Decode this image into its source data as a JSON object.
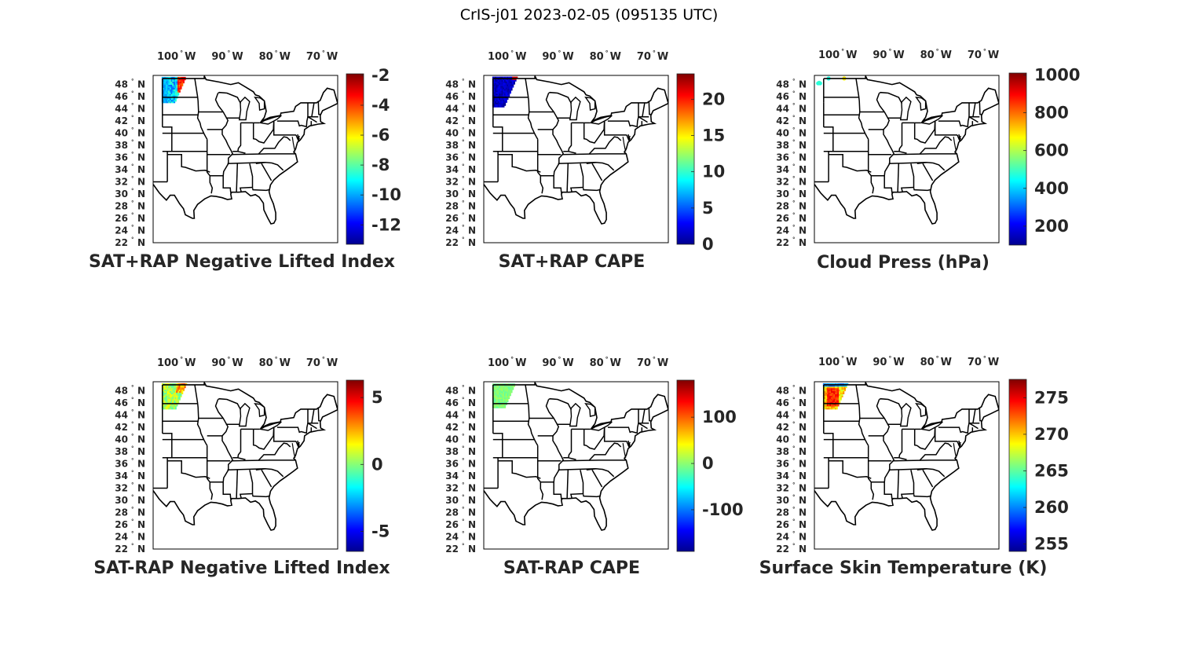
{
  "figure": {
    "title": "CrIS-j01 2023-02-05 (095135 UTC)"
  },
  "axes": {
    "lon_tick_labels": [
      "100",
      "90",
      "80",
      "70"
    ],
    "lon_suffix": "W",
    "lat_tick_labels": [
      "48",
      "46",
      "44",
      "42",
      "40",
      "38",
      "36",
      "34",
      "32",
      "30",
      "28",
      "26",
      "24",
      "22"
    ],
    "lat_suffix": "N",
    "degree_symbol": "°"
  },
  "chart_data": [
    {
      "type": "heatmap",
      "title": "SAT+RAP Negative Lifted Index",
      "colormap": "jet",
      "colorbar_range": [
        -13.3,
        -1.9
      ],
      "colorbar_ticks": [
        -2,
        -4,
        -6,
        -8,
        -10,
        -12
      ],
      "data_region": "northern Great Plains (about 48-45°N, 104-99°W)"
    },
    {
      "type": "heatmap",
      "title": "SAT+RAP CAPE",
      "colormap": "jet",
      "colorbar_range": [
        0,
        23.5
      ],
      "colorbar_ticks": [
        0,
        5,
        10,
        15,
        20
      ],
      "data_region": "northern Great Plains (about 49-44°N, 104-99°W)"
    },
    {
      "type": "heatmap",
      "title": "Cloud Press (hPa)",
      "colormap": "jet",
      "colorbar_range": [
        100,
        1010
      ],
      "colorbar_ticks": [
        200,
        400,
        600,
        800,
        1000
      ],
      "data_region": "sparse points near 48-49°N, 104-98°W"
    },
    {
      "type": "heatmap",
      "title": "SAT-RAP Negative Lifted Index",
      "colormap": "jet",
      "colorbar_range": [
        -6.5,
        6.3
      ],
      "colorbar_ticks": [
        -5,
        0,
        5
      ],
      "data_region": "northern Great Plains (about 49-45°N, 104-99°W)"
    },
    {
      "type": "heatmap",
      "title": "SAT-RAP CAPE",
      "colormap": "jet",
      "colorbar_range": [
        -190,
        180
      ],
      "colorbar_ticks": [
        -100,
        0,
        100
      ],
      "data_region": "northern Great Plains (about 49-45°N, 104-99°W)"
    },
    {
      "type": "heatmap",
      "title": "Surface Skin Temperature (K)",
      "colormap": "jet",
      "colorbar_range": [
        254,
        277.5
      ],
      "colorbar_ticks": [
        255,
        260,
        265,
        270,
        275
      ],
      "data_region": "northern Great Plains (about 49-45°N, 104-99°W)"
    }
  ]
}
